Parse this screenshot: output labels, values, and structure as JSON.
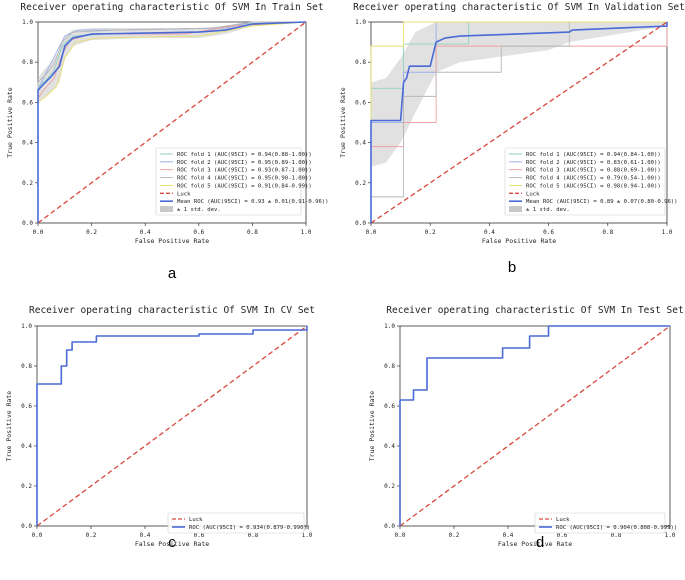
{
  "chart_data": [
    {
      "type": "line",
      "panel": "a",
      "title": "Receiver operating characteristic Of SVM In Train Set",
      "xlabel": "False Positive Rate",
      "ylabel": "True Positive Rate",
      "xlim": [
        0,
        1
      ],
      "ylim": [
        0,
        1
      ],
      "xticks": [
        "0.0",
        "0.2",
        "0.4",
        "0.6",
        "0.8",
        "1.0"
      ],
      "yticks": [
        "0.0",
        "0.2",
        "0.4",
        "0.6",
        "0.8",
        "1.0"
      ],
      "legend_position": "lower-right",
      "band": {
        "label": "± 1 std. dev.",
        "color": "#c8c8c8",
        "upper": [
          [
            0,
            0
          ],
          [
            0,
            0.72
          ],
          [
            0.02,
            0.76
          ],
          [
            0.05,
            0.8
          ],
          [
            0.08,
            0.86
          ],
          [
            0.1,
            0.93
          ],
          [
            0.13,
            0.96
          ],
          [
            0.2,
            0.97
          ],
          [
            0.4,
            0.97
          ],
          [
            0.6,
            0.97
          ],
          [
            0.7,
            0.98
          ],
          [
            0.8,
            1.0
          ],
          [
            1,
            1
          ]
        ],
        "lower": [
          [
            0,
            0
          ],
          [
            0,
            0.6
          ],
          [
            0.02,
            0.62
          ],
          [
            0.05,
            0.65
          ],
          [
            0.08,
            0.7
          ],
          [
            0.1,
            0.82
          ],
          [
            0.13,
            0.88
          ],
          [
            0.2,
            0.91
          ],
          [
            0.4,
            0.92
          ],
          [
            0.6,
            0.92
          ],
          [
            0.7,
            0.94
          ],
          [
            0.8,
            0.98
          ],
          [
            1,
            1
          ]
        ]
      },
      "series": [
        {
          "name": "ROC fold 1 (AUC(95CI) = 0.94(0.88-1.00))",
          "color": "#8fd1c0",
          "points": [
            [
              0,
              0
            ],
            [
              0,
              0.68
            ],
            [
              0.03,
              0.71
            ],
            [
              0.06,
              0.76
            ],
            [
              0.09,
              0.88
            ],
            [
              0.13,
              0.93
            ],
            [
              0.25,
              0.94
            ],
            [
              0.6,
              0.95
            ],
            [
              0.75,
              0.99
            ],
            [
              1,
              1
            ]
          ]
        },
        {
          "name": "ROC fold 2 (AUC(95CI) = 0.95(0.89-1.00))",
          "color": "#9ab0e8",
          "points": [
            [
              0,
              0
            ],
            [
              0,
              0.66
            ],
            [
              0.02,
              0.72
            ],
            [
              0.05,
              0.8
            ],
            [
              0.1,
              0.93
            ],
            [
              0.15,
              0.96
            ],
            [
              0.3,
              0.96
            ],
            [
              0.7,
              0.97
            ],
            [
              0.8,
              1.0
            ],
            [
              1,
              1
            ]
          ]
        },
        {
          "name": "ROC fold 3 (AUC(95CI) = 0.93(0.87-1.00))",
          "color": "#f0a0a0",
          "points": [
            [
              0,
              0
            ],
            [
              0,
              0.62
            ],
            [
              0.02,
              0.66
            ],
            [
              0.06,
              0.72
            ],
            [
              0.09,
              0.84
            ],
            [
              0.12,
              0.91
            ],
            [
              0.2,
              0.94
            ],
            [
              0.55,
              0.94
            ],
            [
              0.72,
              0.98
            ],
            [
              1,
              1
            ]
          ]
        },
        {
          "name": "ROC fold 4 (AUC(95CI) = 0.95(0.90-1.00))",
          "color": "#b8b8b8",
          "points": [
            [
              0,
              0
            ],
            [
              0,
              0.7
            ],
            [
              0.03,
              0.74
            ],
            [
              0.06,
              0.79
            ],
            [
              0.09,
              0.9
            ],
            [
              0.13,
              0.95
            ],
            [
              0.3,
              0.96
            ],
            [
              0.65,
              0.97
            ],
            [
              0.8,
              1.0
            ],
            [
              1,
              1
            ]
          ]
        },
        {
          "name": "ROC fold 5 (AUC(95CI) = 0.91(0.84-0.99))",
          "color": "#e8e070",
          "points": [
            [
              0,
              0
            ],
            [
              0,
              0.6
            ],
            [
              0.03,
              0.63
            ],
            [
              0.07,
              0.68
            ],
            [
              0.1,
              0.82
            ],
            [
              0.14,
              0.9
            ],
            [
              0.22,
              0.92
            ],
            [
              0.6,
              0.93
            ],
            [
              0.8,
              0.98
            ],
            [
              1,
              1
            ]
          ]
        },
        {
          "name": "Luck",
          "color": "#d9483b",
          "dashed": true,
          "points": [
            [
              0,
              0
            ],
            [
              1,
              1
            ]
          ]
        },
        {
          "name": "Mean ROC (AUC(95CI) = 0.93 ± 0.01(0.91-0.96))",
          "color": "#4a6ad6",
          "width": 1.6,
          "points": [
            [
              0,
              0
            ],
            [
              0,
              0.66
            ],
            [
              0.02,
              0.69
            ],
            [
              0.05,
              0.73
            ],
            [
              0.08,
              0.78
            ],
            [
              0.1,
              0.88
            ],
            [
              0.13,
              0.92
            ],
            [
              0.2,
              0.94
            ],
            [
              0.4,
              0.945
            ],
            [
              0.6,
              0.95
            ],
            [
              0.7,
              0.96
            ],
            [
              0.8,
              0.99
            ],
            [
              1,
              1
            ]
          ]
        }
      ]
    },
    {
      "type": "line",
      "panel": "b",
      "title": "Receiver operating characteristic Of SVM In Validation Set",
      "xlabel": "False Positive Rate",
      "ylabel": "True Positive Rate",
      "xlim": [
        0,
        1
      ],
      "ylim": [
        0,
        1
      ],
      "xticks": [
        "0.0",
        "0.2",
        "0.4",
        "0.6",
        "0.8",
        "1.0"
      ],
      "yticks": [
        "0.0",
        "0.2",
        "0.4",
        "0.6",
        "0.8",
        "1.0"
      ],
      "legend_position": "lower-right",
      "band": {
        "label": "± 1 std. dev.",
        "color": "#c8c8c8",
        "upper": [
          [
            0,
            0
          ],
          [
            0,
            0.7
          ],
          [
            0.05,
            0.72
          ],
          [
            0.1,
            0.82
          ],
          [
            0.15,
            0.95
          ],
          [
            0.22,
            1.0
          ],
          [
            1,
            1
          ]
        ],
        "lower": [
          [
            0,
            0
          ],
          [
            0,
            0.28
          ],
          [
            0.05,
            0.3
          ],
          [
            0.1,
            0.4
          ],
          [
            0.15,
            0.55
          ],
          [
            0.22,
            0.75
          ],
          [
            0.3,
            0.8
          ],
          [
            0.6,
            0.86
          ],
          [
            0.67,
            0.9
          ],
          [
            1,
            0.98
          ]
        ]
      },
      "series": [
        {
          "name": "ROC fold 1 (AUC(95CI) = 0.94(0.84-1.00))",
          "color": "#8fd1c0",
          "points": [
            [
              0,
              0
            ],
            [
              0,
              0.67
            ],
            [
              0.11,
              0.67
            ],
            [
              0.11,
              0.89
            ],
            [
              0.33,
              0.89
            ],
            [
              0.33,
              1.0
            ],
            [
              1,
              1
            ]
          ]
        },
        {
          "name": "ROC fold 2 (AUC(95CI) = 0.83(0.61-1.00))",
          "color": "#9ab0e8",
          "points": [
            [
              0,
              0
            ],
            [
              0,
              0.5
            ],
            [
              0.11,
              0.5
            ],
            [
              0.11,
              0.75
            ],
            [
              0.22,
              0.75
            ],
            [
              0.22,
              1.0
            ],
            [
              1,
              1
            ]
          ]
        },
        {
          "name": "ROC fold 3 (AUC(95CI) = 0.88(0.69-1.00))",
          "color": "#f0a0a0",
          "points": [
            [
              0,
              0
            ],
            [
              0,
              0.38
            ],
            [
              0.11,
              0.38
            ],
            [
              0.11,
              0.5
            ],
            [
              0.22,
              0.5
            ],
            [
              0.22,
              0.88
            ],
            [
              0.67,
              0.88
            ],
            [
              0.67,
              0.88
            ],
            [
              1,
              0.88
            ],
            [
              1,
              1
            ]
          ]
        },
        {
          "name": "ROC fold 4 (AUC(95CI) = 0.79(0.54-1.00))",
          "color": "#b8b8b8",
          "points": [
            [
              0,
              0
            ],
            [
              0,
              0.13
            ],
            [
              0.11,
              0.13
            ],
            [
              0.11,
              0.63
            ],
            [
              0.22,
              0.63
            ],
            [
              0.22,
              0.75
            ],
            [
              0.44,
              0.75
            ],
            [
              0.44,
              0.88
            ],
            [
              0.67,
              0.88
            ],
            [
              0.67,
              1.0
            ],
            [
              1,
              1
            ]
          ]
        },
        {
          "name": "ROC fold 5 (AUC(95CI) = 0.98(0.94-1.00))",
          "color": "#e8e070",
          "points": [
            [
              0,
              0
            ],
            [
              0,
              0.88
            ],
            [
              0.11,
              0.88
            ],
            [
              0.11,
              1.0
            ],
            [
              1,
              1
            ]
          ]
        },
        {
          "name": "Luck",
          "color": "#d9483b",
          "dashed": true,
          "points": [
            [
              0,
              0
            ],
            [
              1,
              1
            ]
          ]
        },
        {
          "name": "Mean ROC (AUC(95CI) = 0.89 ± 0.07(0.80-0.96))",
          "color": "#4a6ad6",
          "width": 1.6,
          "points": [
            [
              0,
              0
            ],
            [
              0,
              0.51
            ],
            [
              0.1,
              0.51
            ],
            [
              0.11,
              0.7
            ],
            [
              0.12,
              0.72
            ],
            [
              0.13,
              0.78
            ],
            [
              0.2,
              0.78
            ],
            [
              0.22,
              0.9
            ],
            [
              0.25,
              0.92
            ],
            [
              0.3,
              0.93
            ],
            [
              0.67,
              0.95
            ],
            [
              0.68,
              0.96
            ],
            [
              1,
              0.98
            ],
            [
              1,
              1
            ]
          ]
        }
      ]
    },
    {
      "type": "line",
      "panel": "c",
      "title": "Receiver operating characteristic Of SVM In CV Set",
      "xlabel": "False Positive Rate",
      "ylabel": "True Positive Rate",
      "xlim": [
        0,
        1
      ],
      "ylim": [
        0,
        1
      ],
      "xticks": [
        "0.0",
        "0.2",
        "0.4",
        "0.6",
        "0.8",
        "1.0"
      ],
      "yticks": [
        "0.0",
        "0.2",
        "0.4",
        "0.6",
        "0.8",
        "1.0"
      ],
      "legend_position": "lower-right",
      "series": [
        {
          "name": "Luck",
          "color": "#d9483b",
          "dashed": true,
          "points": [
            [
              0,
              0
            ],
            [
              1,
              1
            ]
          ]
        },
        {
          "name": "ROC (AUC(95CI) = 0.934(0.879-0.990))",
          "color": "#4a6ad6",
          "width": 1.6,
          "points": [
            [
              0,
              0
            ],
            [
              0,
              0.71
            ],
            [
              0.09,
              0.71
            ],
            [
              0.09,
              0.8
            ],
            [
              0.11,
              0.8
            ],
            [
              0.11,
              0.88
            ],
            [
              0.13,
              0.88
            ],
            [
              0.13,
              0.92
            ],
            [
              0.22,
              0.92
            ],
            [
              0.22,
              0.95
            ],
            [
              0.6,
              0.95
            ],
            [
              0.6,
              0.96
            ],
            [
              0.8,
              0.96
            ],
            [
              0.8,
              0.98
            ],
            [
              1,
              0.98
            ],
            [
              1,
              1
            ]
          ]
        }
      ]
    },
    {
      "type": "line",
      "panel": "d",
      "title": "Receiver operating characteristic Of SVM In Test Set",
      "xlabel": "False Positive Rate",
      "ylabel": "True Positive Rate",
      "xlim": [
        0,
        1
      ],
      "ylim": [
        0,
        1
      ],
      "xticks": [
        "0.0",
        "0.2",
        "0.4",
        "0.6",
        "0.8",
        "1.0"
      ],
      "yticks": [
        "0.0",
        "0.2",
        "0.4",
        "0.6",
        "0.8",
        "1.0"
      ],
      "legend_position": "lower-right",
      "series": [
        {
          "name": "Luck",
          "color": "#d9483b",
          "dashed": true,
          "points": [
            [
              0,
              0
            ],
            [
              1,
              1
            ]
          ]
        },
        {
          "name": "ROC (AUC(95CI) = 0.904(0.808-0.999))",
          "color": "#4a6ad6",
          "width": 1.6,
          "points": [
            [
              0,
              0
            ],
            [
              0,
              0.63
            ],
            [
              0.05,
              0.63
            ],
            [
              0.05,
              0.68
            ],
            [
              0.1,
              0.68
            ],
            [
              0.1,
              0.84
            ],
            [
              0.38,
              0.84
            ],
            [
              0.38,
              0.89
            ],
            [
              0.48,
              0.89
            ],
            [
              0.48,
              0.95
            ],
            [
              0.55,
              0.95
            ],
            [
              0.55,
              1.0
            ],
            [
              1,
              1
            ]
          ]
        }
      ]
    }
  ],
  "captions": [
    "a",
    "b",
    "c",
    "d"
  ]
}
